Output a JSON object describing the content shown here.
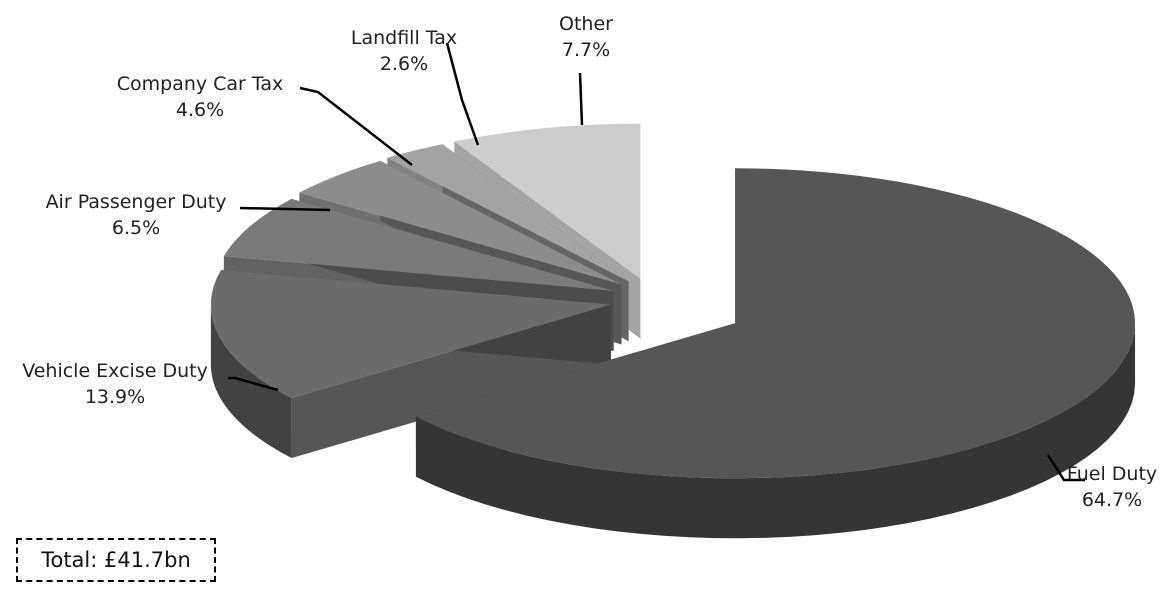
{
  "chart_data": {
    "type": "pie",
    "title": "",
    "style": "3d-exploded",
    "slices": [
      {
        "label": "Fuel Duty",
        "value": 64.7,
        "display": "64.7%",
        "color": "#565656"
      },
      {
        "label": "Vehicle Excise Duty",
        "value": 13.9,
        "display": "13.9%",
        "color": "#6b6b6b"
      },
      {
        "label": "Air Passenger Duty",
        "value": 6.5,
        "display": "6.5%",
        "color": "#7a7a7a"
      },
      {
        "label": "Company Car Tax",
        "value": 4.6,
        "display": "4.6%",
        "color": "#8c8c8c"
      },
      {
        "label": "Landfill Tax",
        "value": 2.6,
        "display": "2.6%",
        "color": "#a3a3a3"
      },
      {
        "label": "Other",
        "value": 7.7,
        "display": "7.7%",
        "color": "#cdcdcd"
      }
    ],
    "annotation": "Total: £41.7bn"
  }
}
